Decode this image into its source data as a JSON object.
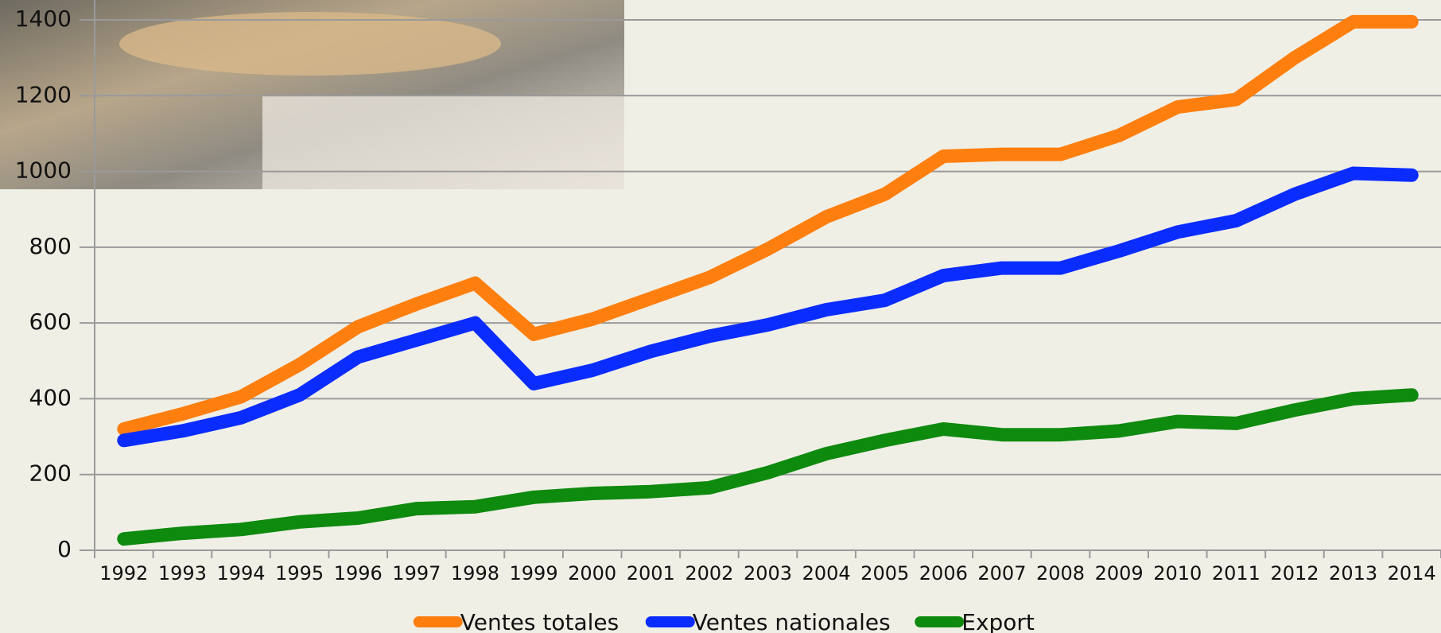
{
  "chart_data": {
    "type": "line",
    "categories": [
      "1992",
      "1993",
      "1994",
      "1995",
      "1996",
      "1997",
      "1998",
      "1999",
      "2000",
      "2001",
      "2002",
      "2003",
      "2004",
      "2005",
      "2006",
      "2007",
      "2008",
      "2009",
      "2010",
      "2011",
      "2012",
      "2013",
      "2014"
    ],
    "series": [
      {
        "name": "Ventes totales",
        "color": "#ff7f0e",
        "values": [
          320,
          360,
          405,
          490,
          590,
          650,
          705,
          570,
          610,
          665,
          720,
          795,
          880,
          940,
          1040,
          1045,
          1045,
          1095,
          1170,
          1190,
          1300,
          1395,
          1395
        ]
      },
      {
        "name": "Ventes nationales",
        "color": "#0a2cff",
        "values": [
          290,
          315,
          350,
          410,
          510,
          555,
          600,
          440,
          475,
          525,
          565,
          595,
          635,
          660,
          725,
          745,
          745,
          790,
          840,
          870,
          940,
          995,
          990
        ]
      },
      {
        "name": "Export",
        "color": "#0e8a0e",
        "values": [
          30,
          45,
          55,
          75,
          85,
          110,
          115,
          140,
          150,
          155,
          165,
          205,
          255,
          290,
          320,
          305,
          305,
          315,
          340,
          335,
          370,
          400,
          410
        ]
      }
    ],
    "ylim": [
      0,
      1400
    ],
    "yticks": [
      0,
      200,
      400,
      600,
      800,
      1000,
      1200,
      1400
    ],
    "grid": true
  }
}
